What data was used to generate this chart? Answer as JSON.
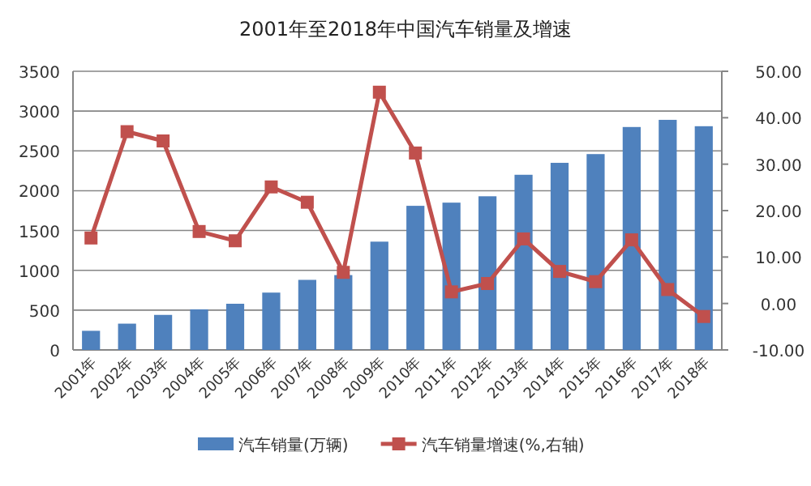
{
  "chart_data": {
    "type": "bar",
    "title": "2001年至2018年中国汽车销量及增速",
    "categories": [
      "2001年",
      "2002年",
      "2003年",
      "2004年",
      "2005年",
      "2006年",
      "2007年",
      "2008年",
      "2009年",
      "2010年",
      "2011年",
      "2012年",
      "2013年",
      "2014年",
      "2015年",
      "2016年",
      "2017年",
      "2018年"
    ],
    "series": [
      {
        "name": "汽车销量(万辆)",
        "color": "#4f81bd",
        "values": [
          240,
          330,
          440,
          510,
          580,
          720,
          880,
          940,
          1360,
          1810,
          1850,
          1930,
          2200,
          2350,
          2460,
          2800,
          2890,
          2810
        ]
      },
      {
        "name": "汽车销量增速(%,右轴)",
        "type": "line",
        "axis": "y2",
        "color": "#c0504d",
        "marker": "square",
        "values": [
          14.1,
          37.0,
          35.0,
          15.5,
          13.5,
          25.1,
          21.8,
          6.7,
          45.5,
          32.4,
          2.5,
          4.3,
          13.9,
          6.9,
          4.7,
          13.7,
          3.0,
          -2.8
        ]
      }
    ],
    "ylim": [
      0,
      3500
    ],
    "yticks": [
      0,
      500,
      1000,
      1500,
      2000,
      2500,
      3000,
      3500
    ],
    "y2lim": [
      -10,
      50
    ],
    "y2ticks": [
      {
        "value": -10,
        "label": "-10.00"
      },
      {
        "value": 0,
        "label": "0.00"
      },
      {
        "value": 10,
        "label": "10.00"
      },
      {
        "value": 20,
        "label": "20.00"
      },
      {
        "value": 30,
        "label": "30.00"
      },
      {
        "value": 40,
        "label": "40.00"
      },
      {
        "value": 50,
        "label": "50.00"
      }
    ],
    "grid": "y",
    "legend": "bottom"
  }
}
